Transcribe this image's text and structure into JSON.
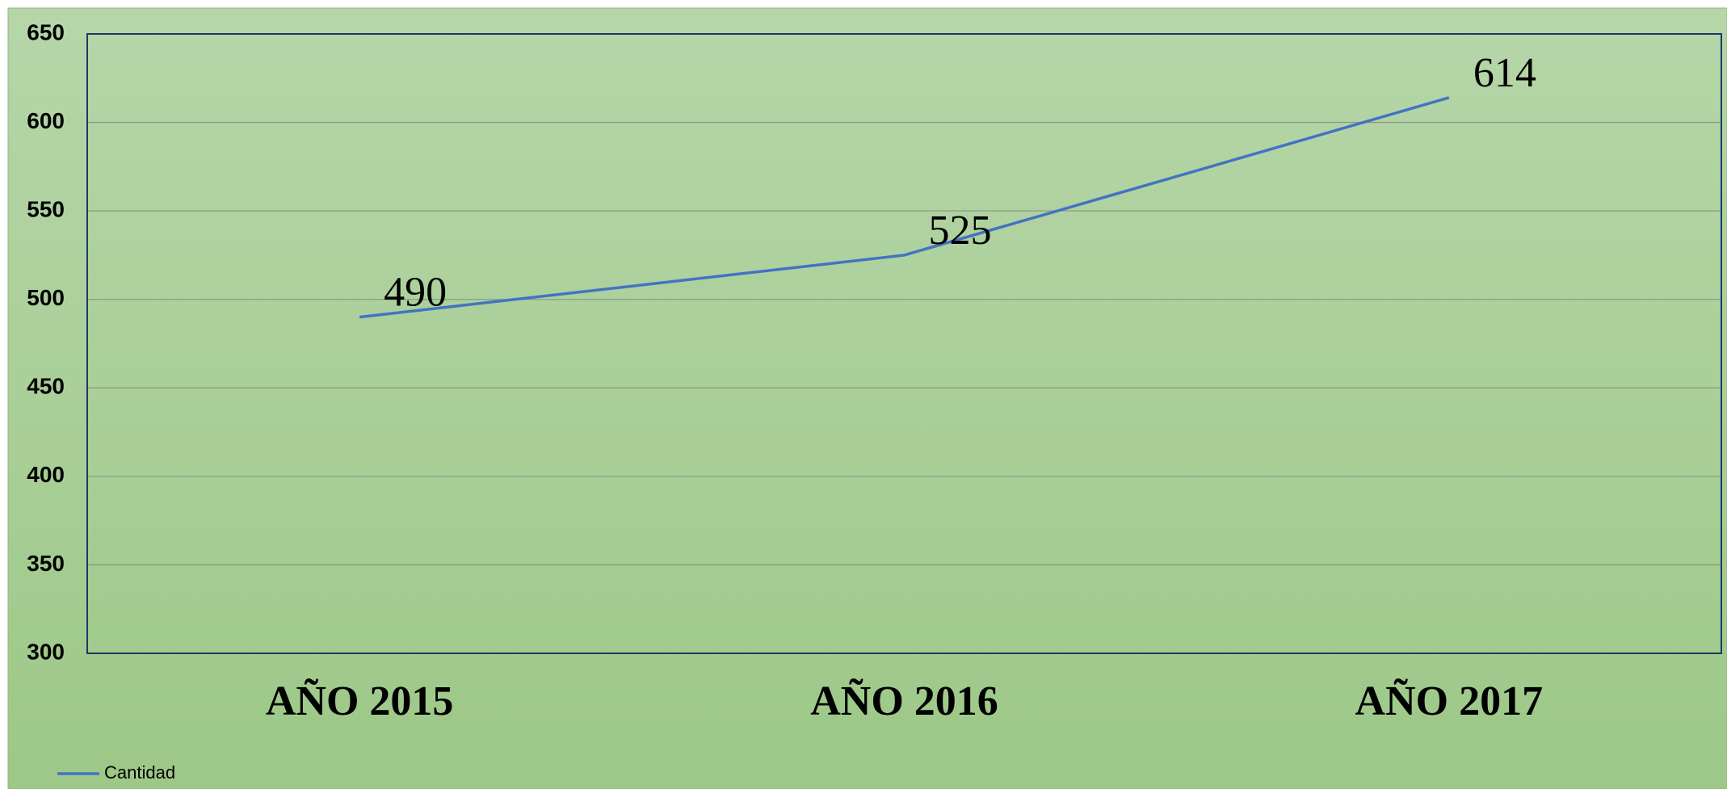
{
  "chart_data": {
    "type": "line",
    "categories": [
      "AÑO 2015",
      "AÑO 2016",
      "AÑO 2017"
    ],
    "series": [
      {
        "name": "Cantidad",
        "color": "#4472c4",
        "values": [
          490,
          525,
          614
        ]
      }
    ],
    "ylim": [
      300,
      650
    ],
    "yticks": [
      300,
      350,
      400,
      450,
      500,
      550,
      600,
      650
    ],
    "grid": true,
    "legend": "bottom-left"
  }
}
